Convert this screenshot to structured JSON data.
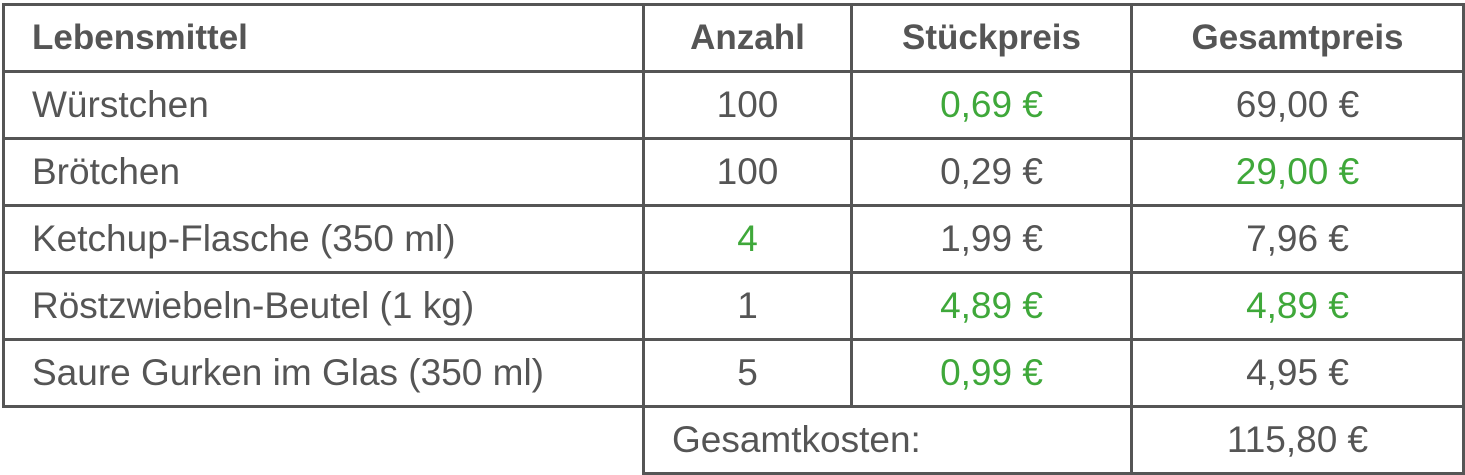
{
  "text_color": "#555555",
  "border_color": "#555555",
  "table": {
    "header": [
      "Lebensmittel",
      "Anzahl",
      "Stückpreis",
      "Gesamtpreis"
    ],
    "rows": [
      [
        {
          "text": "Würstchen"
        },
        {
          "text": "100"
        },
        {
          "text": "0,69 €",
          "color": "#3fa83a"
        },
        {
          "text": "69,00 €"
        }
      ],
      [
        {
          "text": "Brötchen"
        },
        {
          "text": "100"
        },
        {
          "text": "0,29 €"
        },
        {
          "text": "29,00 €",
          "color": "#3fa83a"
        }
      ],
      [
        {
          "text": "Ketchup-Flasche (350 ml)"
        },
        {
          "text": "4",
          "color": "#3fa83a"
        },
        {
          "text": "1,99 €"
        },
        {
          "text": "7,96 €"
        }
      ],
      [
        {
          "text": "Röstzwiebeln-Beutel (1 kg)"
        },
        {
          "text": "1"
        },
        {
          "text": "4,89 €",
          "color": "#3fa83a"
        },
        {
          "text": "4,89 €",
          "color": "#3fa83a"
        }
      ],
      [
        {
          "text": "Saure Gurken im Glas (350 ml)"
        },
        {
          "text": "5"
        },
        {
          "text": "0,99 €",
          "color": "#3fa83a"
        },
        {
          "text": "4,95 €"
        }
      ]
    ],
    "total": {
      "label": "Gesamtkosten:",
      "value": "115,80 €"
    }
  }
}
